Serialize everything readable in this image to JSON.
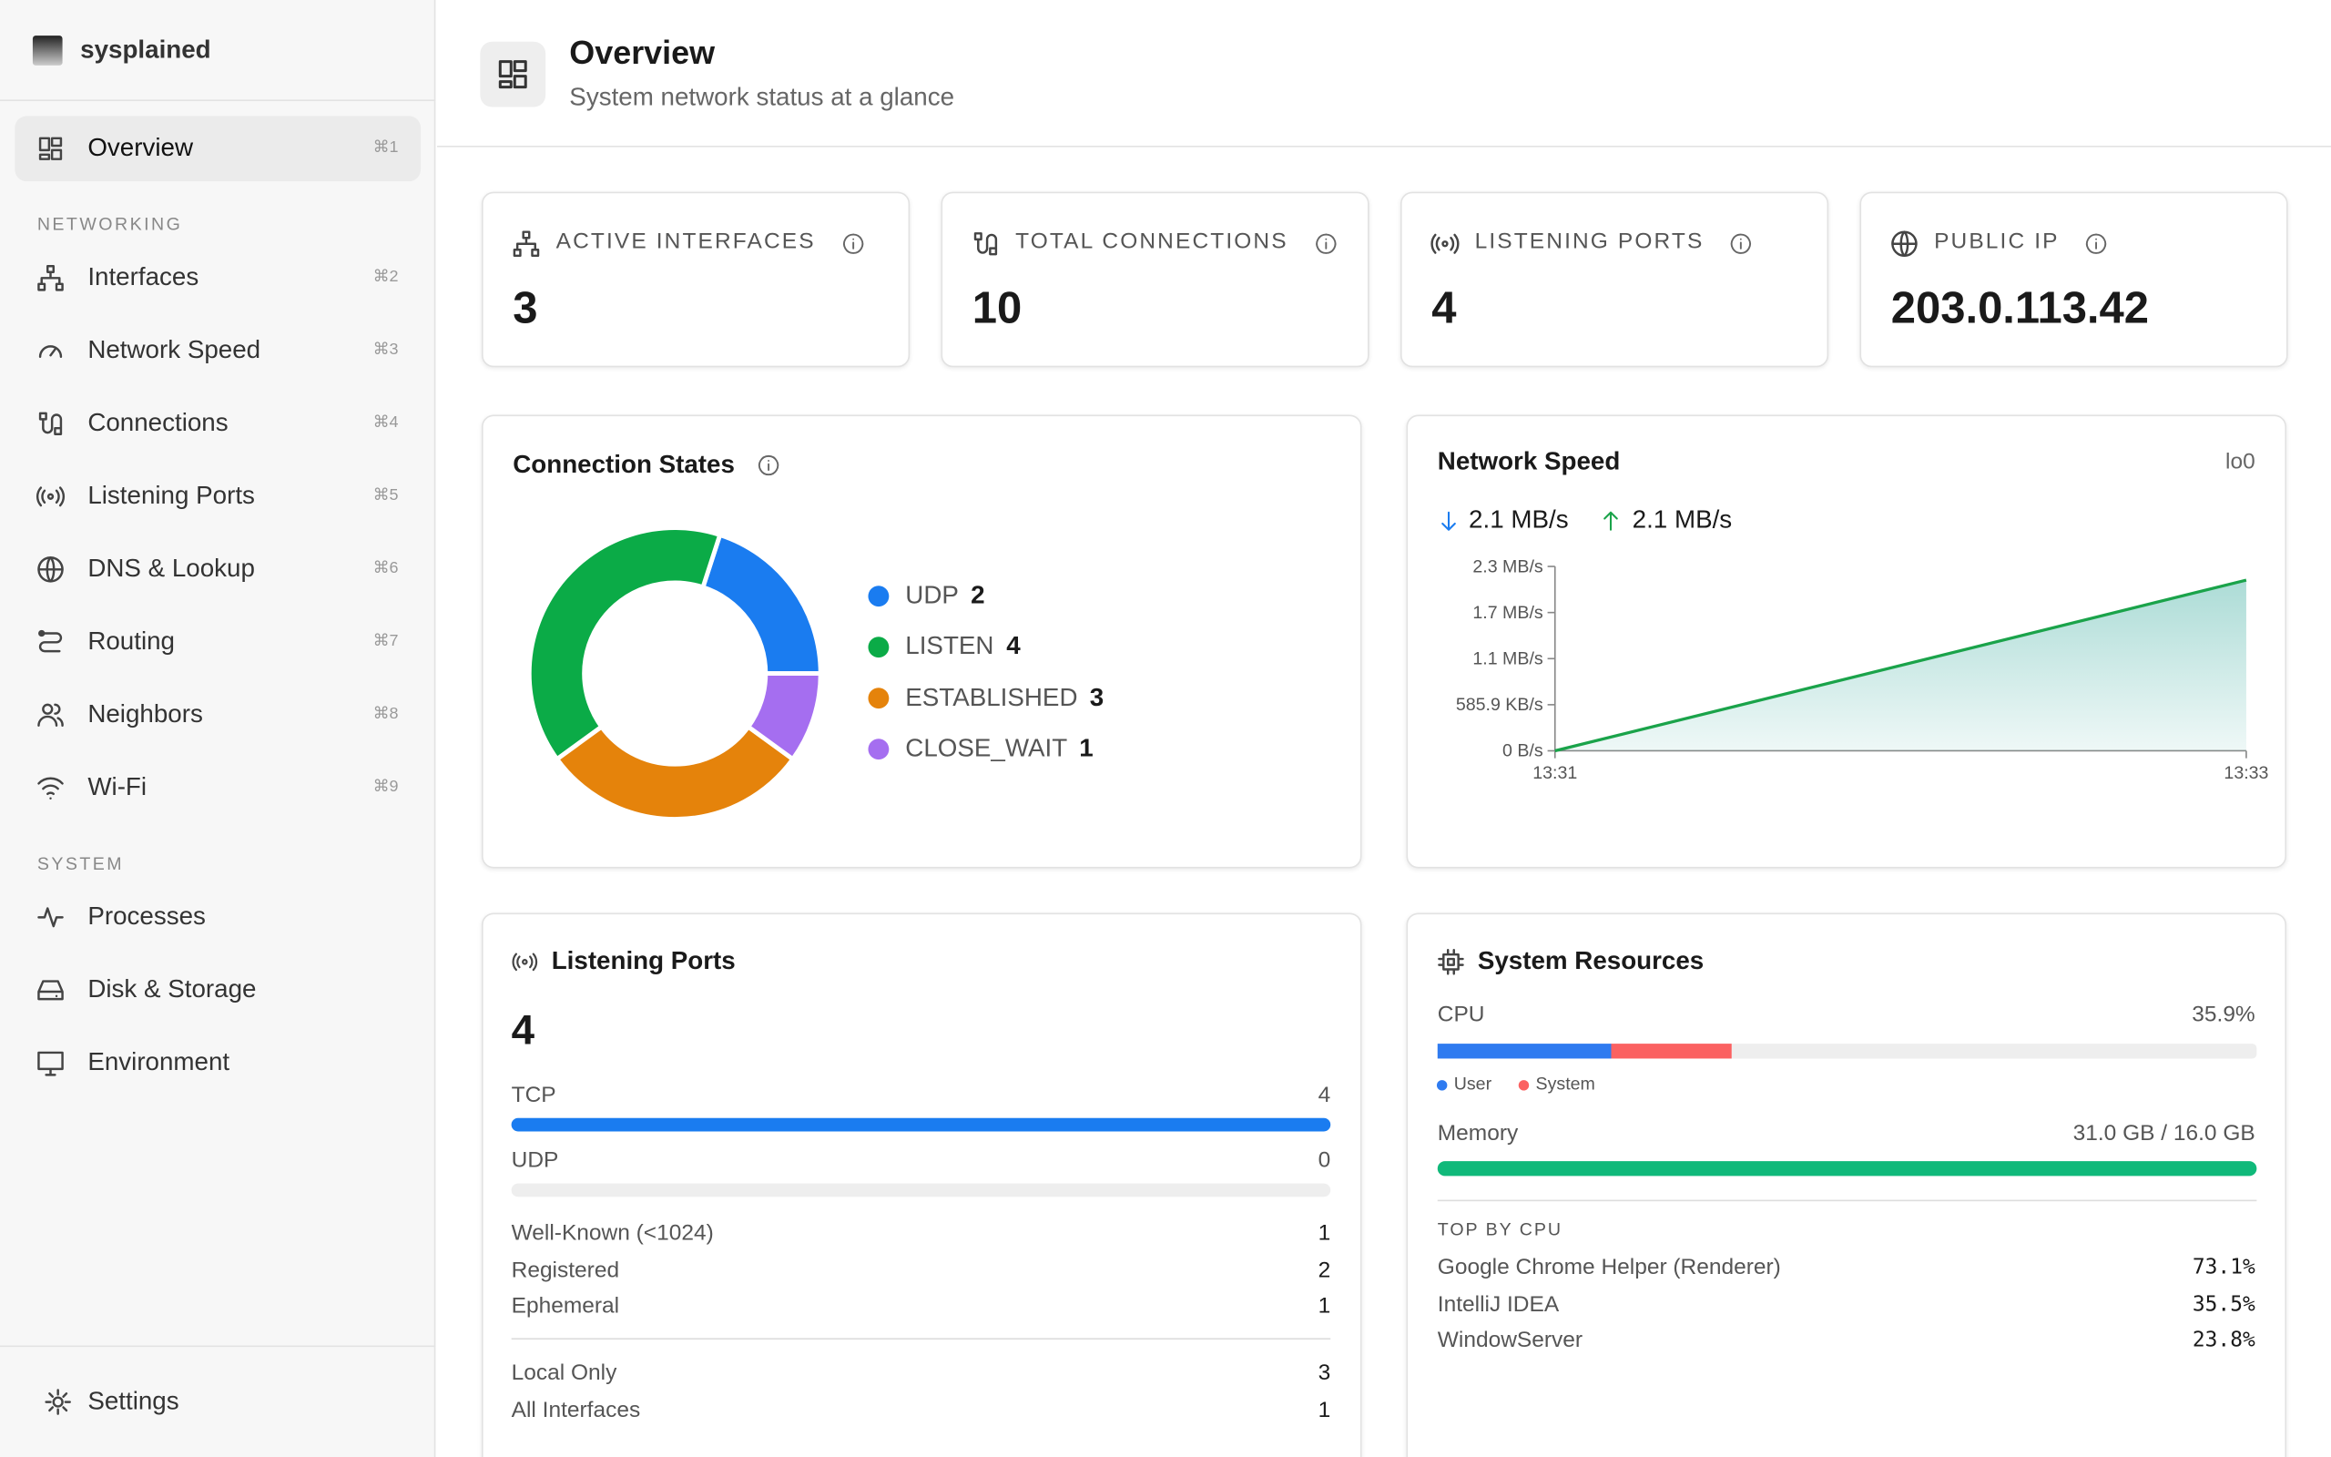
{
  "sidebar": {
    "brand": "sysplained",
    "top_items": [
      {
        "label": "Overview",
        "shortcut": "⌘1"
      }
    ],
    "sections": [
      {
        "title": "NETWORKING",
        "items": [
          {
            "label": "Interfaces",
            "shortcut": "⌘2"
          },
          {
            "label": "Network Speed",
            "shortcut": "⌘3"
          },
          {
            "label": "Connections",
            "shortcut": "⌘4"
          },
          {
            "label": "Listening Ports",
            "shortcut": "⌘5"
          },
          {
            "label": "DNS & Lookup",
            "shortcut": "⌘6"
          },
          {
            "label": "Routing",
            "shortcut": "⌘7"
          },
          {
            "label": "Neighbors",
            "shortcut": "⌘8"
          },
          {
            "label": "Wi-Fi",
            "shortcut": "⌘9"
          }
        ]
      },
      {
        "title": "SYSTEM",
        "items": [
          {
            "label": "Processes"
          },
          {
            "label": "Disk & Storage"
          },
          {
            "label": "Environment"
          }
        ]
      }
    ],
    "settings": "Settings"
  },
  "header": {
    "title": "Overview",
    "subtitle": "System network status at a glance"
  },
  "stats": [
    {
      "label": "ACTIVE INTERFACES",
      "value": 3
    },
    {
      "label": "TOTAL CONNECTIONS",
      "value": 10
    },
    {
      "label": "LISTENING PORTS",
      "value": 4
    },
    {
      "label": "PUBLIC IP",
      "value": "203.0.113.42"
    }
  ],
  "chart_data": [
    {
      "type": "pie",
      "title": "Connection States",
      "categories": [
        "UDP",
        "LISTEN",
        "ESTABLISHED",
        "CLOSE_WAIT"
      ],
      "values": [
        2,
        4,
        3,
        1
      ],
      "colors": [
        "#1a7cf0",
        "#0bab47",
        "#e5830b",
        "#a56ef0"
      ]
    },
    {
      "type": "line",
      "title": "Network Speed",
      "interface": "lo0",
      "download": "2.1 MB/s",
      "upload": "2.1 MB/s",
      "x": [
        "13:31",
        "13:33"
      ],
      "values": [
        0,
        2170
      ],
      "color": "#1aa34a",
      "ylim": [
        0,
        2343.6
      ],
      "yticks": [
        {
          "value": 0,
          "label": "0 B/s"
        },
        {
          "value": 585.9,
          "label": "585.9 KB/s"
        },
        {
          "value": 1171.8,
          "label": "1.1 MB/s"
        },
        {
          "value": 1757.7,
          "label": "1.7 MB/s"
        },
        {
          "value": 2343.6,
          "label": "2.3 MB/s"
        }
      ]
    }
  ],
  "listening_ports": {
    "title": "Listening Ports",
    "total": 4,
    "protocols": [
      {
        "label": "TCP",
        "value": 4
      },
      {
        "label": "UDP",
        "value": 0
      }
    ],
    "ranges": [
      {
        "label": "Well-Known (<1024)",
        "value": 1
      },
      {
        "label": "Registered",
        "value": 2
      },
      {
        "label": "Ephemeral",
        "value": 1
      }
    ],
    "scope": [
      {
        "label": "Local Only",
        "value": 3
      },
      {
        "label": "All Interfaces",
        "value": 1
      }
    ]
  },
  "system_resources": {
    "title": "System Resources",
    "cpu": {
      "label": "CPU",
      "value_label": "35.9%",
      "user": 21.2,
      "system": 14.7,
      "legend": [
        "User",
        "System"
      ]
    },
    "memory": {
      "label": "Memory",
      "value_label": "31.0 GB / 16.0 GB",
      "used": 31.0,
      "total": 16.0
    },
    "top_title": "TOP BY CPU",
    "processes": [
      {
        "name": "Google Chrome Helper (Renderer)",
        "cpu": "73.1%"
      },
      {
        "name": "IntelliJ IDEA",
        "cpu": "35.5%"
      },
      {
        "name": "WindowServer",
        "cpu": "23.8%"
      }
    ]
  }
}
